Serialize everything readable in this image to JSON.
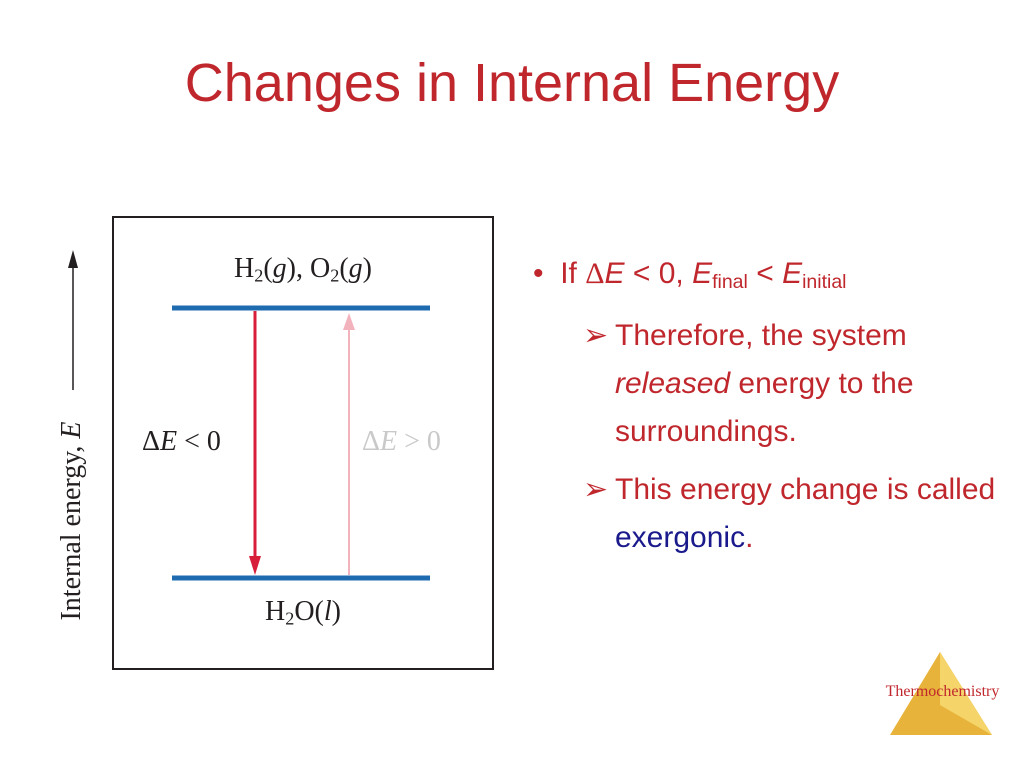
{
  "title": "Changes in Internal Energy",
  "diagram": {
    "top_state": [
      "H",
      "2",
      "(",
      "g",
      "), O",
      "2",
      "(",
      "g",
      ")"
    ],
    "bottom_state": [
      "H",
      "2",
      "O(",
      "l",
      ")"
    ],
    "down_label": [
      "Δ",
      "E",
      " < 0"
    ],
    "up_label": [
      "Δ",
      "E",
      " > 0"
    ],
    "axis_label": [
      "Internal energy, ",
      "E"
    ]
  },
  "bullets": [
    {
      "text": [
        "If ",
        "Δ",
        "E",
        " < 0, ",
        "E",
        "final",
        " < ",
        "E",
        "initial"
      ],
      "sub": [
        [
          "Therefore, the system ",
          "released",
          " energy to the surroundings."
        ],
        [
          "This energy change is called ",
          "exergonic",
          "."
        ]
      ]
    }
  ],
  "footer": "Thermochemistry"
}
